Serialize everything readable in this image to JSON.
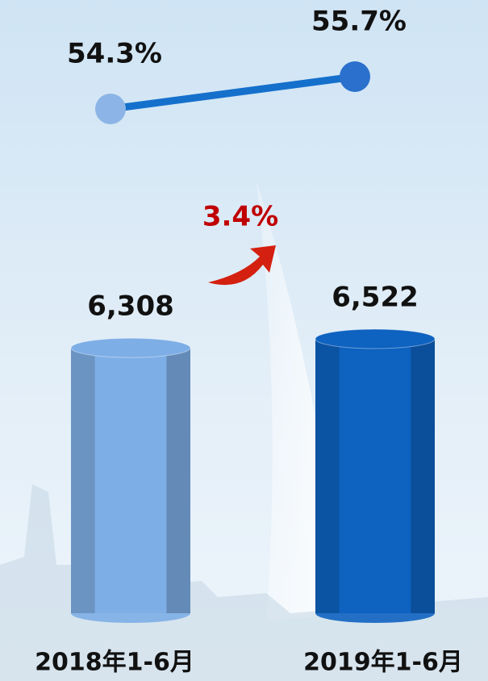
{
  "chart_data": [
    {
      "type": "bar",
      "categories": [
        "2018年1-6月",
        "2019年1-6月"
      ],
      "values": [
        6308,
        6522
      ],
      "value_labels": [
        "6,308",
        "6,522"
      ],
      "colors": [
        "#7eaee6",
        "#0e62c0"
      ],
      "annotation": "3.4%"
    },
    {
      "type": "line",
      "values": [
        54.3,
        55.7
      ],
      "value_labels": [
        "54.3%",
        "55.7%"
      ],
      "color": "#1570cc",
      "marker_colors": [
        "#8cb4e6",
        "#2a70cc"
      ]
    }
  ]
}
